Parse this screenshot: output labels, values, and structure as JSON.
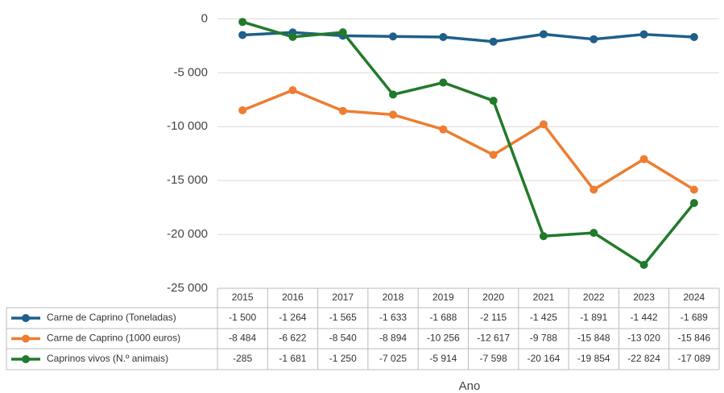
{
  "chart_data": {
    "type": "line",
    "x_label": "Ano",
    "categories": [
      "2015",
      "2016",
      "2017",
      "2018",
      "2019",
      "2020",
      "2021",
      "2022",
      "2023",
      "2024"
    ],
    "ylim": [
      -25000,
      1000
    ],
    "yticks": [
      0,
      {
        "value": -5000,
        "label": "-5 000"
      },
      {
        "value": -10000,
        "label": "-10 000"
      },
      {
        "value": -15000,
        "label": "-15 000"
      },
      {
        "value": -20000,
        "label": "-20 000"
      },
      {
        "value": -25000,
        "label": "-25 000"
      }
    ],
    "grid": true,
    "series": [
      {
        "name": "Carne de Caprino (Toneladas)",
        "color": "#1f5f8b",
        "values": [
          -1500,
          -1264,
          -1565,
          -1633,
          -1688,
          -2115,
          -1425,
          -1891,
          -1442,
          -1689
        ],
        "value_labels": [
          "-1 500",
          "-1 264",
          "-1 565",
          "-1 633",
          "-1 688",
          "-2 115",
          "-1 425",
          "-1 891",
          "-1 442",
          "-1 689"
        ]
      },
      {
        "name": "Carne de Caprino (1000 euros)",
        "color": "#ed7d31",
        "values": [
          -8484,
          -6622,
          -8540,
          -8894,
          -10256,
          -12617,
          -9788,
          -15848,
          -13020,
          -15846
        ],
        "value_labels": [
          "-8 484",
          "-6 622",
          "-8 540",
          "-8 894",
          "-10 256",
          "-12 617",
          "-9 788",
          "-15 848",
          "-13 020",
          "-15 846"
        ]
      },
      {
        "name": "Caprinos vivos (N.º animais)",
        "color": "#217a2b",
        "values": [
          -285,
          -1681,
          -1250,
          -7025,
          -5914,
          -7598,
          -20164,
          -19854,
          -22824,
          -17089
        ],
        "value_labels": [
          "-285",
          "-1 681",
          "-1 250",
          "-7 025",
          "-5 914",
          "-7 598",
          "-20 164",
          "-19 854",
          "-22 824",
          "-17 089"
        ]
      }
    ]
  }
}
